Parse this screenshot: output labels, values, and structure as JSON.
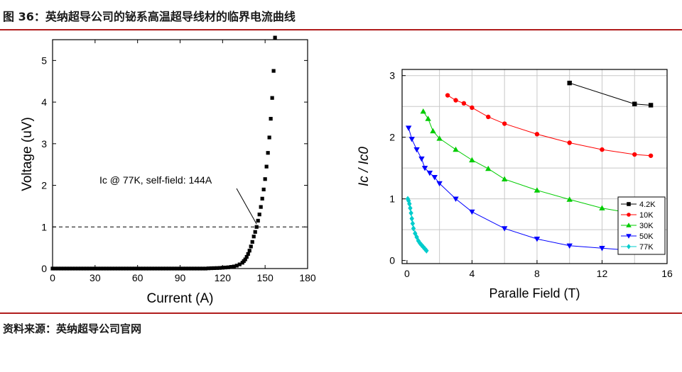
{
  "figure_title": "图 36：英纳超导公司的铋系高温超导线材的临界电流曲线",
  "source_text": "资料来源：英纳超导公司官网",
  "chart_data": [
    {
      "type": "scatter",
      "xlabel": "Current (A)",
      "ylabel": "Voltage (uV)",
      "xlim": [
        0,
        180
      ],
      "ylim": [
        0,
        5.5
      ],
      "x_ticks": [
        "0",
        "30",
        "60",
        "90",
        "120",
        "150",
        "180"
      ],
      "y_ticks": [
        "0",
        "1",
        "2",
        "3",
        "4",
        "5"
      ],
      "annotation": "Ic @ 77K, self-field: 144A",
      "reference_line_y": 1,
      "grid": false,
      "marker_color": "#000000",
      "series": [
        {
          "x": [
            0,
            2,
            4,
            6,
            8,
            10,
            12,
            14,
            16,
            18,
            20,
            22,
            24,
            26,
            28,
            30,
            32,
            34,
            36,
            38,
            40,
            42,
            44,
            46,
            48,
            50,
            52,
            54,
            56,
            58,
            60,
            62,
            64,
            66,
            68,
            70,
            72,
            74,
            76,
            78,
            80,
            82,
            84,
            86,
            88,
            90,
            92,
            94,
            96,
            98,
            100,
            102,
            104,
            106,
            108,
            110,
            112,
            114,
            116,
            118,
            120,
            122,
            124,
            126,
            128,
            130,
            132,
            134,
            135,
            136,
            137,
            138,
            139,
            140,
            141,
            142,
            143,
            144,
            145,
            146,
            147,
            148,
            149,
            150,
            151,
            152,
            153,
            154,
            155,
            156,
            157
          ],
          "y": [
            0,
            0,
            0,
            0,
            0,
            0,
            0,
            0,
            0,
            0,
            0,
            0,
            0,
            0,
            0,
            0,
            0,
            0,
            0,
            0,
            0,
            0,
            0,
            0,
            0,
            0,
            0,
            0,
            0,
            0,
            0,
            0,
            0,
            0,
            0,
            0,
            0,
            0,
            0,
            0,
            0,
            0,
            0,
            0,
            0,
            0,
            0,
            0,
            0,
            0,
            0,
            0,
            0,
            0,
            0,
            0.005,
            0.008,
            0.01,
            0.012,
            0.015,
            0.02,
            0.025,
            0.03,
            0.04,
            0.05,
            0.07,
            0.1,
            0.14,
            0.18,
            0.22,
            0.28,
            0.35,
            0.43,
            0.53,
            0.64,
            0.77,
            0.88,
            1.0,
            1.15,
            1.3,
            1.48,
            1.68,
            1.9,
            2.15,
            2.45,
            2.78,
            3.15,
            3.6,
            4.1,
            4.75,
            5.55
          ]
        }
      ]
    },
    {
      "type": "line",
      "xlabel": "Paralle Field (T)",
      "ylabel": "Ic / Ic0",
      "xlim": [
        -0.3,
        16
      ],
      "ylim": [
        -0.05,
        3.1
      ],
      "x_ticks": [
        "0",
        "4",
        "8",
        "12",
        "16"
      ],
      "y_ticks": [
        "0",
        "1",
        "2",
        "3"
      ],
      "grid": true,
      "legend_position": "bottom-right",
      "series": [
        {
          "name": "4.2K",
          "color": "#000000",
          "marker": "square",
          "x": [
            10,
            14,
            15
          ],
          "y": [
            2.88,
            2.54,
            2.52
          ]
        },
        {
          "name": "10K",
          "color": "#ff0000",
          "marker": "circle",
          "x": [
            2.5,
            3,
            3.5,
            4,
            5,
            6,
            8,
            10,
            12,
            14,
            15
          ],
          "y": [
            2.68,
            2.6,
            2.55,
            2.48,
            2.33,
            2.22,
            2.05,
            1.91,
            1.8,
            1.72,
            1.7
          ]
        },
        {
          "name": "30K",
          "color": "#00cc00",
          "marker": "triangle-up",
          "x": [
            1,
            1.3,
            1.6,
            2,
            3,
            4,
            5,
            6,
            8,
            10,
            12,
            14
          ],
          "y": [
            2.42,
            2.3,
            2.1,
            1.98,
            1.8,
            1.63,
            1.49,
            1.32,
            1.14,
            0.99,
            0.85,
            0.76
          ]
        },
        {
          "name": "50K",
          "color": "#0000ff",
          "marker": "triangle-down",
          "x": [
            0.1,
            0.3,
            0.6,
            0.9,
            1.1,
            1.4,
            1.7,
            2,
            3,
            4,
            6,
            8,
            10,
            12,
            14
          ],
          "y": [
            2.15,
            1.97,
            1.8,
            1.65,
            1.5,
            1.42,
            1.35,
            1.25,
            1.0,
            0.79,
            0.52,
            0.35,
            0.24,
            0.2,
            0.16
          ]
        },
        {
          "name": "77K",
          "color": "#00cccc",
          "marker": "diamond",
          "x": [
            0.05,
            0.1,
            0.15,
            0.2,
            0.25,
            0.3,
            0.35,
            0.4,
            0.5,
            0.6,
            0.7,
            0.8,
            0.9,
            1.0,
            1.1,
            1.2
          ],
          "y": [
            1.0,
            0.97,
            0.92,
            0.85,
            0.77,
            0.68,
            0.6,
            0.52,
            0.44,
            0.38,
            0.32,
            0.28,
            0.25,
            0.22,
            0.19,
            0.16
          ]
        }
      ]
    }
  ]
}
